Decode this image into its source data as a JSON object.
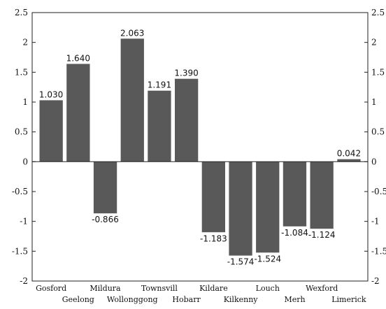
{
  "chart_data": {
    "type": "bar",
    "categories": [
      "Gosford",
      "Geelong",
      "Mildura",
      "Wollonggong",
      "Townsvill",
      "Hobarr",
      "Kildare",
      "Kilkenny",
      "Louch",
      "Merh",
      "Wexford",
      "Limerick"
    ],
    "values": [
      1.03,
      1.64,
      -0.866,
      2.063,
      1.191,
      1.39,
      -1.183,
      -1.574,
      -1.524,
      -1.084,
      -1.124,
      0.042
    ],
    "value_labels": [
      "1.030",
      "1.640",
      "-0.866",
      "2.063",
      "1.191",
      "1.390",
      "-1.183",
      "-1.574",
      "-1.524",
      "-1.084",
      "-1.124",
      "0.042"
    ],
    "yticks": [
      2.5,
      2,
      1.5,
      1,
      0.5,
      0,
      -0.5,
      -1,
      -1.5,
      -2
    ],
    "ytick_labels": [
      "2.5",
      "2",
      "1.5",
      "1",
      "0.5",
      "0",
      "-0.5",
      "-1",
      "-1.5",
      "-2"
    ],
    "right_tick_labels": [
      "2.5",
      "2",
      "1.5",
      "1",
      "0.5",
      "0",
      "-0.5",
      "-1",
      "-1.5",
      "-2"
    ],
    "ylim": [
      -2,
      2.5
    ],
    "bar_color": "#595959",
    "grid": false,
    "title": "",
    "xlabel": "",
    "ylabel": ""
  }
}
